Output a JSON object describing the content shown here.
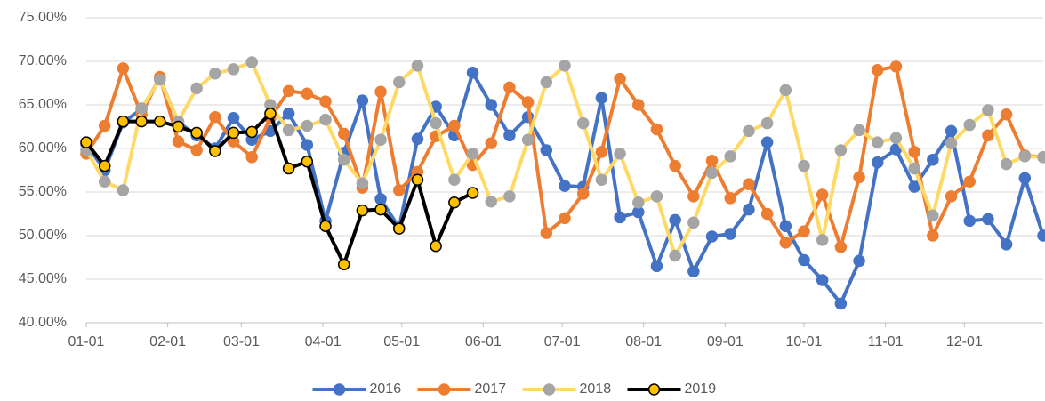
{
  "chart_data": {
    "type": "line",
    "x": [
      0,
      7,
      14,
      21,
      28,
      35,
      42,
      49,
      56,
      63,
      70,
      77,
      84,
      91,
      98,
      105,
      112,
      119,
      126,
      133,
      140,
      147,
      154,
      161,
      168,
      175,
      182,
      189,
      196,
      203,
      210,
      217,
      224,
      231,
      238,
      245,
      252,
      259,
      266,
      273,
      280,
      287,
      294,
      301,
      308,
      315,
      322,
      329,
      336,
      343,
      350,
      357,
      364
    ],
    "xlim": [
      0,
      364
    ],
    "xticks": [
      {
        "value": 0,
        "label": "01-01"
      },
      {
        "value": 31,
        "label": "02-01"
      },
      {
        "value": 59,
        "label": "03-01"
      },
      {
        "value": 90,
        "label": "04-01"
      },
      {
        "value": 120,
        "label": "05-01"
      },
      {
        "value": 151,
        "label": "06-01"
      },
      {
        "value": 181,
        "label": "07-01"
      },
      {
        "value": 212,
        "label": "08-01"
      },
      {
        "value": 243,
        "label": "09-01"
      },
      {
        "value": 273,
        "label": "10-01"
      },
      {
        "value": 304,
        "label": "11-01"
      },
      {
        "value": 334,
        "label": "12-01"
      }
    ],
    "ylim": [
      40,
      75
    ],
    "yticks": [
      {
        "value": 40,
        "label": "40.00%"
      },
      {
        "value": 45,
        "label": "45.00%"
      },
      {
        "value": 50,
        "label": "50.00%"
      },
      {
        "value": 55,
        "label": "55.00%"
      },
      {
        "value": 60,
        "label": "60.00%"
      },
      {
        "value": 65,
        "label": "65.00%"
      },
      {
        "value": 70,
        "label": "70.00%"
      },
      {
        "value": 75,
        "label": "75.00%"
      }
    ],
    "grid": true,
    "legend": "bottom",
    "series": [
      {
        "name": "2016",
        "color": "#4472c4",
        "marker_color": "#4472c4",
        "values": [
          60.5,
          57.5,
          63.0,
          64.5,
          68.0,
          63.0,
          61.5,
          60.0,
          63.5,
          61.0,
          62.0,
          64.0,
          60.4,
          51.7,
          59.5,
          65.5,
          54.2,
          50.9,
          61.1,
          64.8,
          61.5,
          68.7,
          65.0,
          61.5,
          63.6,
          59.8,
          55.7,
          55.6,
          65.8,
          52.1,
          52.7,
          46.5,
          51.8,
          45.9,
          49.9,
          50.2,
          53.0,
          60.7,
          51.1,
          47.2,
          44.9,
          42.2,
          47.1,
          58.4,
          59.9,
          55.6,
          58.7,
          62.0,
          51.7,
          51.9,
          49.0,
          56.6,
          50.0
        ]
      },
      {
        "name": "2017",
        "color": "#ed7d31",
        "marker_color": "#ed7d31",
        "values": [
          59.4,
          62.6,
          69.2,
          63.9,
          68.2,
          60.8,
          59.8,
          63.6,
          60.8,
          59.0,
          63.5,
          66.6,
          66.3,
          65.4,
          61.7,
          55.5,
          66.5,
          55.2,
          57.3,
          61.4,
          62.6,
          58.1,
          60.6,
          67.0,
          65.3,
          50.3,
          52.0,
          54.8,
          59.6,
          68.0,
          65.0,
          62.2,
          58.0,
          54.5,
          58.6,
          54.3,
          55.9,
          52.5,
          49.2,
          50.5,
          54.7,
          48.7,
          56.7,
          69.0,
          69.4,
          59.6,
          50.0,
          54.5,
          56.2,
          61.5,
          63.9,
          59.2,
          59.0
        ]
      },
      {
        "name": "2018",
        "color": "#ffd966",
        "marker_color": "#a5a5a5",
        "values": [
          59.8,
          56.2,
          55.2,
          64.6,
          67.9,
          63.1,
          66.9,
          68.6,
          69.1,
          69.9,
          65.0,
          62.1,
          62.6,
          63.3,
          58.7,
          56.0,
          61.0,
          67.6,
          69.5,
          62.9,
          56.4,
          59.4,
          53.9,
          54.5,
          61.0,
          67.6,
          69.5,
          62.9,
          56.4,
          59.4,
          53.8,
          54.5,
          47.7,
          51.5,
          57.2,
          59.1,
          62.0,
          62.9,
          66.7,
          58.0,
          49.5,
          59.8,
          62.1,
          60.7,
          61.2,
          57.7,
          52.3,
          60.6,
          62.7,
          64.4,
          58.2,
          59.1,
          59.0
        ]
      },
      {
        "name": "2019",
        "color": "#000000",
        "marker_color": "#ffc000",
        "values": [
          60.7,
          58.0,
          63.1,
          63.1,
          63.1,
          62.5,
          61.8,
          59.7,
          61.8,
          61.9,
          64.0,
          57.7,
          58.5,
          51.1,
          46.7,
          52.9,
          53.0,
          50.8,
          56.4,
          48.8,
          53.8,
          54.9,
          null,
          null,
          null,
          null,
          null,
          null,
          null,
          null,
          null,
          null,
          null,
          null,
          null,
          null,
          null,
          null,
          null,
          null,
          null,
          null,
          null,
          null,
          null,
          null,
          null,
          null,
          null,
          null,
          null,
          null,
          null
        ]
      }
    ]
  }
}
